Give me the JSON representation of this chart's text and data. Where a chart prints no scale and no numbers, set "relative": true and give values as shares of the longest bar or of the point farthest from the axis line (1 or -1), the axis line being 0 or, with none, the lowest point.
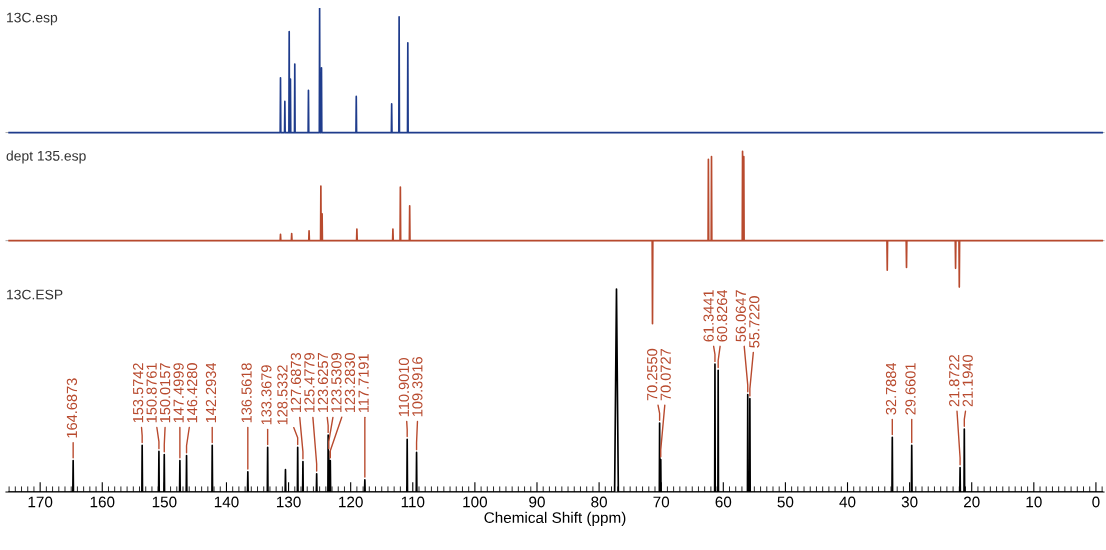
{
  "chart_data": [
    {
      "type": "line",
      "relative": true,
      "xlim": [
        175.5,
        -1.3
      ],
      "tick_labels": false,
      "series": [
        {
          "name": "13C.esp",
          "color": "#1f3c8c",
          "x": [
            175,
            131.35,
            131.3,
            131.25,
            130.65,
            130.6,
            130.55,
            129.95,
            129.9,
            129.85,
            129.75,
            129.7,
            129.65,
            129.05,
            129.0,
            128.95,
            126.85,
            126.8,
            126.75,
            125.05,
            125.0,
            124.95,
            124.75,
            124.7,
            124.65,
            119.15,
            119.1,
            119.05,
            113.45,
            113.4,
            113.35,
            112.25,
            112.2,
            112.15,
            110.85,
            110.8,
            110.75,
            -1
          ],
          "values": [
            0,
            0,
            0.44,
            0,
            0,
            0.25,
            0,
            0,
            0.81,
            0,
            0,
            0.43,
            0,
            0,
            0.55,
            0,
            0,
            0.34,
            0,
            0,
            1.0,
            0,
            0,
            0.52,
            0,
            0,
            0.29,
            0,
            0,
            0.23,
            0,
            0,
            0.93,
            0,
            0,
            0.72,
            0,
            0
          ]
        }
      ]
    },
    {
      "type": "line",
      "relative": true,
      "xlim": [
        175.5,
        -1.3
      ],
      "tick_labels": false,
      "series": [
        {
          "name": "dept 135.esp",
          "color": "#b84a2e",
          "x": [
            175,
            131.35,
            131.3,
            131.25,
            129.55,
            129.5,
            129.45,
            126.75,
            126.7,
            126.65,
            124.85,
            124.8,
            124.75,
            124.65,
            124.6,
            124.55,
            119.05,
            119.0,
            118.95,
            113.25,
            113.2,
            113.15,
            112.05,
            112.0,
            111.95,
            110.55,
            110.5,
            110.45,
            71.45,
            71.4,
            71.35,
            62.45,
            62.4,
            62.35,
            61.95,
            61.9,
            61.85,
            56.95,
            56.9,
            56.85,
            56.75,
            56.7,
            56.65,
            33.65,
            33.6,
            33.55,
            30.55,
            30.5,
            30.45,
            22.65,
            22.6,
            22.55,
            22.05,
            22.0,
            21.95,
            -1
          ],
          "values": [
            0,
            0,
            0.07,
            0,
            0,
            0.08,
            0,
            0,
            0.11,
            0,
            0,
            0.61,
            0,
            0,
            0.3,
            0,
            0,
            0.13,
            0,
            0,
            0.13,
            0,
            0,
            0.6,
            0,
            0,
            0.39,
            0,
            0,
            -0.93,
            0,
            0,
            0.91,
            0,
            0,
            0.94,
            0,
            0,
            1.0,
            0,
            0,
            0.94,
            0,
            0,
            -0.33,
            0,
            0,
            -0.3,
            0,
            0,
            -0.31,
            0,
            0,
            -0.52,
            0,
            0
          ]
        }
      ]
    },
    {
      "type": "line",
      "relative": true,
      "xlim": [
        175.5,
        -1.3
      ],
      "tick_labels": "x",
      "xlabel": "Chemical Shift (ppm)",
      "xticks": [
        170,
        160,
        150,
        140,
        130,
        120,
        110,
        100,
        90,
        80,
        70,
        60,
        50,
        40,
        30,
        20,
        10,
        0
      ],
      "series": [
        {
          "name": "13C.ESP",
          "color": "#000000",
          "x": [
            175,
            164.74,
            164.6873,
            164.64,
            153.62,
            153.5742,
            153.52,
            150.93,
            150.8761,
            150.83,
            150.07,
            150.0157,
            149.97,
            147.55,
            147.4999,
            147.45,
            146.48,
            146.428,
            146.38,
            142.34,
            142.2934,
            142.24,
            136.61,
            136.5618,
            136.51,
            133.42,
            133.3679,
            133.32,
            130.55,
            130.5,
            130.45,
            128.58,
            128.5332,
            128.48,
            127.74,
            127.6873,
            127.64,
            125.53,
            125.4779,
            125.43,
            123.67,
            123.6257,
            123.58,
            123.5309,
            123.48,
            123.33,
            123.283,
            123.23,
            117.77,
            117.7191,
            117.67,
            110.95,
            110.901,
            110.85,
            109.44,
            109.3916,
            109.34,
            77.5,
            77.2,
            76.9,
            70.3,
            70.255,
            70.21,
            70.12,
            70.0727,
            70.03,
            61.39,
            61.3441,
            61.3,
            60.87,
            60.8264,
            60.78,
            56.11,
            56.0647,
            56.02,
            55.77,
            55.722,
            55.67,
            32.84,
            32.7884,
            32.74,
            29.71,
            29.6601,
            29.61,
            21.92,
            21.8722,
            21.83,
            21.24,
            21.194,
            21.14,
            -1
          ],
          "values": [
            0,
            0,
            0.155,
            0,
            0,
            0.23,
            0,
            0,
            0.2,
            0,
            0,
            0.185,
            0,
            0,
            0.155,
            0,
            0,
            0.18,
            0,
            0,
            0.23,
            0,
            0,
            0.1,
            0,
            0,
            0.22,
            0,
            0,
            0.11,
            0,
            0,
            0.22,
            0,
            0,
            0.15,
            0,
            0,
            0.09,
            0,
            0,
            0.28,
            0,
            0.2,
            0,
            0,
            0.155,
            0,
            0,
            0.06,
            0,
            0,
            0.26,
            0,
            0,
            0.195,
            0,
            0,
            1.0,
            0,
            0,
            0.34,
            0,
            0,
            0.16,
            0,
            0,
            0.63,
            0,
            0,
            0.6,
            0,
            0,
            0.48,
            0,
            0,
            0.46,
            0,
            0,
            0.27,
            0,
            0,
            0.23,
            0,
            0,
            0.12,
            0,
            0,
            0.31,
            0,
            0
          ]
        }
      ],
      "annotations": [
        {
          "text": "164.6873",
          "x": 164.6873,
          "y": 0.155
        },
        {
          "text": "153.5742",
          "x": 153.5742,
          "y": 0.23
        },
        {
          "text": "150.8761",
          "x": 150.8761,
          "y": 0.2
        },
        {
          "text": "150.0157",
          "x": 150.0157,
          "y": 0.185
        },
        {
          "text": "147.4999",
          "x": 147.4999,
          "y": 0.155
        },
        {
          "text": "146.4280",
          "x": 146.428,
          "y": 0.18
        },
        {
          "text": "142.2934",
          "x": 142.2934,
          "y": 0.23
        },
        {
          "text": "136.5618",
          "x": 136.5618,
          "y": 0.1
        },
        {
          "text": "133.3679",
          "x": 133.3679,
          "y": 0.22
        },
        {
          "text": "128.5332",
          "x": 128.5332,
          "y": 0.22
        },
        {
          "text": "127.6873",
          "x": 127.6873,
          "y": 0.15
        },
        {
          "text": "125.4779",
          "x": 125.4779,
          "y": 0.09
        },
        {
          "text": "123.6257",
          "x": 123.6257,
          "y": 0.28
        },
        {
          "text": "123.5309",
          "x": 123.5309,
          "y": 0.2
        },
        {
          "text": "123.2830",
          "x": 123.283,
          "y": 0.155
        },
        {
          "text": "117.7191",
          "x": 117.7191,
          "y": 0.06
        },
        {
          "text": "110.9010",
          "x": 110.901,
          "y": 0.26
        },
        {
          "text": "109.3916",
          "x": 109.3916,
          "y": 0.195
        },
        {
          "text": "70.2550",
          "x": 70.255,
          "y": 0.34
        },
        {
          "text": "70.0727",
          "x": 70.0727,
          "y": 0.16
        },
        {
          "text": "61.3441",
          "x": 61.3441,
          "y": 0.63
        },
        {
          "text": "60.8264",
          "x": 60.8264,
          "y": 0.6
        },
        {
          "text": "56.0647",
          "x": 56.0647,
          "y": 0.48
        },
        {
          "text": "55.7220",
          "x": 55.722,
          "y": 0.46
        },
        {
          "text": "32.7884",
          "x": 32.7884,
          "y": 0.27
        },
        {
          "text": "29.6601",
          "x": 29.6601,
          "y": 0.23
        },
        {
          "text": "21.8722",
          "x": 21.8722,
          "y": 0.12
        },
        {
          "text": "21.1940",
          "x": 21.194,
          "y": 0.31
        }
      ]
    }
  ]
}
